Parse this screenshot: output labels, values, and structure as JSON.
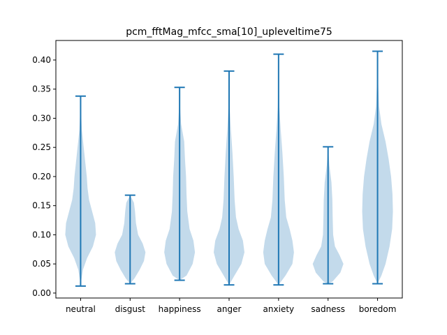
{
  "chart_data": {
    "type": "violin",
    "title": "pcm_fftMag_mfcc_sma[10]_upleveltime75",
    "xlabel": "",
    "ylabel": "",
    "categories": [
      "neutral",
      "disgust",
      "happiness",
      "anger",
      "anxiety",
      "sadness",
      "boredom"
    ],
    "ylim": [
      -0.0085,
      0.4335
    ],
    "yticks": [
      0.0,
      0.05,
      0.1,
      0.15,
      0.2,
      0.25,
      0.3,
      0.35,
      0.4
    ],
    "ytick_labels": [
      "0.00",
      "0.05",
      "0.10",
      "0.15",
      "0.20",
      "0.25",
      "0.30",
      "0.35",
      "0.40"
    ],
    "series": [
      {
        "category": "neutral",
        "min": 0.012,
        "max": 0.338,
        "profile": [
          [
            0.012,
            0.0
          ],
          [
            0.02,
            0.03
          ],
          [
            0.04,
            0.15
          ],
          [
            0.06,
            0.42
          ],
          [
            0.08,
            0.8
          ],
          [
            0.1,
            1.0
          ],
          [
            0.12,
            0.95
          ],
          [
            0.14,
            0.75
          ],
          [
            0.16,
            0.55
          ],
          [
            0.18,
            0.45
          ],
          [
            0.2,
            0.4
          ],
          [
            0.22,
            0.32
          ],
          [
            0.25,
            0.2
          ],
          [
            0.28,
            0.08
          ],
          [
            0.31,
            0.03
          ],
          [
            0.338,
            0.0
          ]
        ]
      },
      {
        "category": "disgust",
        "min": 0.016,
        "max": 0.168,
        "profile": [
          [
            0.016,
            0.0
          ],
          [
            0.025,
            0.28
          ],
          [
            0.04,
            0.62
          ],
          [
            0.055,
            0.9
          ],
          [
            0.07,
            1.0
          ],
          [
            0.085,
            0.82
          ],
          [
            0.1,
            0.52
          ],
          [
            0.12,
            0.38
          ],
          [
            0.14,
            0.32
          ],
          [
            0.155,
            0.25
          ],
          [
            0.168,
            0.0
          ]
        ]
      },
      {
        "category": "happiness",
        "min": 0.022,
        "max": 0.353,
        "profile": [
          [
            0.022,
            0.0
          ],
          [
            0.03,
            0.45
          ],
          [
            0.05,
            0.85
          ],
          [
            0.07,
            1.0
          ],
          [
            0.09,
            0.9
          ],
          [
            0.11,
            0.65
          ],
          [
            0.14,
            0.5
          ],
          [
            0.17,
            0.45
          ],
          [
            0.2,
            0.42
          ],
          [
            0.23,
            0.35
          ],
          [
            0.26,
            0.3
          ],
          [
            0.29,
            0.1
          ],
          [
            0.32,
            0.03
          ],
          [
            0.353,
            0.0
          ]
        ]
      },
      {
        "category": "anger",
        "min": 0.014,
        "max": 0.381,
        "profile": [
          [
            0.014,
            0.0
          ],
          [
            0.03,
            0.35
          ],
          [
            0.05,
            0.8
          ],
          [
            0.07,
            1.0
          ],
          [
            0.09,
            0.9
          ],
          [
            0.11,
            0.62
          ],
          [
            0.13,
            0.45
          ],
          [
            0.16,
            0.36
          ],
          [
            0.2,
            0.3
          ],
          [
            0.24,
            0.22
          ],
          [
            0.28,
            0.12
          ],
          [
            0.32,
            0.04
          ],
          [
            0.35,
            0.02
          ],
          [
            0.381,
            0.0
          ]
        ]
      },
      {
        "category": "anxiety",
        "min": 0.014,
        "max": 0.41,
        "profile": [
          [
            0.014,
            0.0
          ],
          [
            0.03,
            0.45
          ],
          [
            0.05,
            0.9
          ],
          [
            0.07,
            1.0
          ],
          [
            0.09,
            0.9
          ],
          [
            0.11,
            0.72
          ],
          [
            0.13,
            0.5
          ],
          [
            0.16,
            0.4
          ],
          [
            0.2,
            0.34
          ],
          [
            0.24,
            0.25
          ],
          [
            0.28,
            0.14
          ],
          [
            0.32,
            0.05
          ],
          [
            0.36,
            0.02
          ],
          [
            0.41,
            0.0
          ]
        ]
      },
      {
        "category": "sadness",
        "min": 0.016,
        "max": 0.251,
        "profile": [
          [
            0.016,
            0.0
          ],
          [
            0.02,
            0.3
          ],
          [
            0.035,
            0.8
          ],
          [
            0.05,
            1.0
          ],
          [
            0.065,
            0.75
          ],
          [
            0.08,
            0.45
          ],
          [
            0.1,
            0.33
          ],
          [
            0.13,
            0.3
          ],
          [
            0.16,
            0.28
          ],
          [
            0.19,
            0.22
          ],
          [
            0.22,
            0.08
          ],
          [
            0.251,
            0.0
          ]
        ]
      },
      {
        "category": "boredom",
        "min": 0.016,
        "max": 0.415,
        "profile": [
          [
            0.016,
            0.0
          ],
          [
            0.03,
            0.25
          ],
          [
            0.05,
            0.52
          ],
          [
            0.08,
            0.78
          ],
          [
            0.11,
            0.95
          ],
          [
            0.14,
            1.0
          ],
          [
            0.17,
            0.97
          ],
          [
            0.2,
            0.88
          ],
          [
            0.23,
            0.72
          ],
          [
            0.26,
            0.52
          ],
          [
            0.29,
            0.25
          ],
          [
            0.32,
            0.1
          ],
          [
            0.36,
            0.04
          ],
          [
            0.415,
            0.0
          ]
        ]
      }
    ],
    "fill_color": "#b9d4e8",
    "line_color": "#1f77b4",
    "grid": false,
    "legend": "none"
  }
}
